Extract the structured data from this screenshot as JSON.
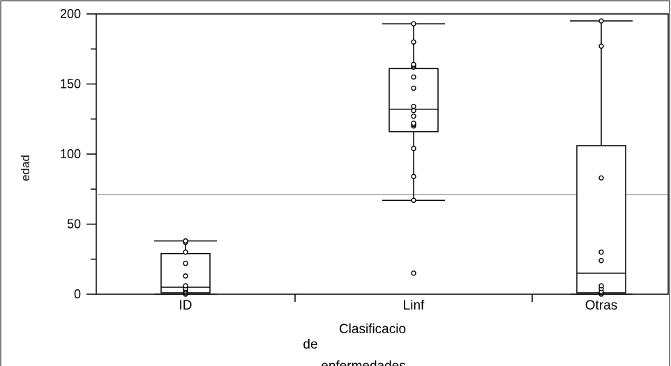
{
  "chart_data": {
    "type": "boxplot",
    "title": "",
    "ylabel": "edad",
    "xlabel_lines": [
      "Clasificacio",
      "de",
      "enfermedades"
    ],
    "ylim": [
      0,
      200
    ],
    "yticks": [
      0,
      50,
      100,
      150,
      200
    ],
    "reference_line": 71,
    "grid": false,
    "legend": "none",
    "colors": {
      "stroke": "#000000",
      "reference_line": "#808080",
      "background": "#ffffff"
    },
    "categories": [
      "ID",
      "Linf",
      "Otras"
    ],
    "boxes": [
      {
        "category": "ID",
        "whisker_low": 0,
        "q1": 1,
        "median": 5,
        "q3": 29,
        "whisker_high": 38,
        "points": [
          0,
          1,
          2,
          3,
          4,
          6,
          13,
          22,
          30,
          37,
          38
        ]
      },
      {
        "category": "Linf",
        "whisker_low": 67,
        "q1": 116,
        "median": 132,
        "q3": 161,
        "whisker_high": 193,
        "points": [
          15,
          67,
          84,
          104,
          120,
          121,
          122,
          127,
          131,
          134,
          147,
          155,
          162,
          163,
          164,
          180,
          193
        ]
      },
      {
        "category": "Otras",
        "whisker_low": 0,
        "q1": 1,
        "median": 15,
        "q3": 106,
        "whisker_high": 195,
        "points": [
          0,
          1,
          2,
          4,
          6,
          24,
          30,
          83,
          177,
          195
        ]
      }
    ]
  }
}
